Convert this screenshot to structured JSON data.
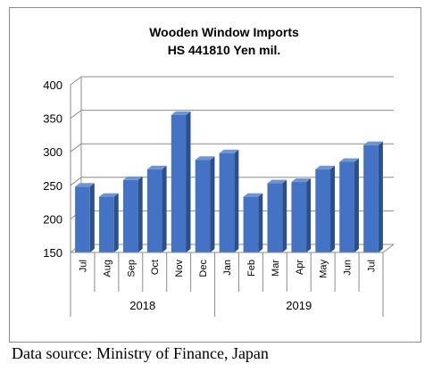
{
  "chart_data": {
    "type": "bar",
    "title_lines": [
      "Wooden Window Imports",
      "HS 441810 Yen mil."
    ],
    "categories": [
      "Jul",
      "Aug",
      "Sep",
      "Oct",
      "Nov",
      "Dec",
      "Jan",
      "Feb",
      "Mar",
      "Apr",
      "May",
      "Jun",
      "Jul"
    ],
    "groups": [
      {
        "label": "2018",
        "count": 6
      },
      {
        "label": "2019",
        "count": 7
      }
    ],
    "values": [
      248,
      233,
      258,
      274,
      355,
      288,
      298,
      233,
      253,
      255,
      274,
      285,
      310
    ],
    "ylim": [
      150,
      400
    ],
    "yticks": [
      150,
      200,
      250,
      300,
      350,
      400
    ],
    "grid": true,
    "legend": "none",
    "bar_color": "#4472c4",
    "bar_side_color": "#2b4f87",
    "bar_top_color": "#6f94d4"
  },
  "source": "Data source: Ministry of Finance, Japan"
}
